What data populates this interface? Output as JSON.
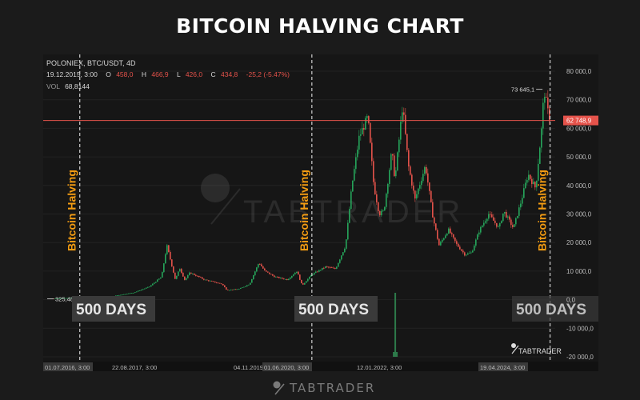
{
  "title": "BITCOIN HALVING CHART",
  "chart_info": {
    "symbol": "POLONIEX, BTC/USDT, 4D",
    "date": "19.12.2015, 3:00",
    "o_label": "O",
    "o_value": "458,0",
    "h_label": "H",
    "h_value": "466,9",
    "l_label": "L",
    "l_value": "426,0",
    "c_label": "C",
    "c_value": "434,8",
    "change": "-25,2 (-5.47%)",
    "vol_label": "VOL",
    "vol_value": "68,8144"
  },
  "watermark": "TABTRADER",
  "footer_logo": "TABTRADER",
  "small_logo": "TABTRADER",
  "colors": {
    "up": "#26a65b",
    "down": "#e5534b",
    "halving": "#f39c12",
    "price_line": "#e5534b",
    "background": "#161616"
  },
  "chart_data": {
    "type": "candlestick",
    "title": "BITCOIN HALVING CHART",
    "ylim": [
      -20000,
      80000
    ],
    "y_ticks": [
      80000,
      70000,
      60000,
      50000,
      40000,
      30000,
      20000,
      10000,
      0,
      -10000,
      -20000
    ],
    "y_tick_labels": [
      "80 000,0",
      "70 000,0",
      "60 000,0",
      "50 000,0",
      "40 000,0",
      "30 000,0",
      "20 000,0",
      "10 000,0",
      "0,0",
      "-10 000,0",
      "-20 000,0"
    ],
    "x_tick_labels": [
      "01.07.2016, 3:00",
      "22.08.2017, 3:00",
      "04.11.2019",
      "01.06.2020, 3:00",
      "12.01.2022, 3:00",
      "19.04.2024, 3:00"
    ],
    "y_axis_extra": "auto",
    "halvings": [
      {
        "label": "Bitcoin Halving",
        "date": "2016-07-09"
      },
      {
        "label": "Bitcoin Halving",
        "date": "2020-05-11"
      },
      {
        "label": "Bitcoin Halving",
        "date": "2024-04-19"
      }
    ],
    "day_labels": [
      "500 DAYS",
      "500 DAYS",
      "500 DAYS"
    ],
    "current_price": 62748.9,
    "current_price_label": "62 748,9",
    "max_price": 73645.1,
    "max_price_label": "73 645,1",
    "min_price": 325.48,
    "min_price_label": "325,480",
    "price_path": [
      {
        "date": "2016-02-01",
        "close": 400
      },
      {
        "date": "2016-06-15",
        "close": 700
      },
      {
        "date": "2017-01-01",
        "close": 1000
      },
      {
        "date": "2017-06-01",
        "close": 2500
      },
      {
        "date": "2017-09-01",
        "close": 4500
      },
      {
        "date": "2017-11-15",
        "close": 8000
      },
      {
        "date": "2017-12-17",
        "close": 19000
      },
      {
        "date": "2018-02-06",
        "close": 7000
      },
      {
        "date": "2018-03-05",
        "close": 11000
      },
      {
        "date": "2018-04-05",
        "close": 6800
      },
      {
        "date": "2018-05-05",
        "close": 9500
      },
      {
        "date": "2018-08-01",
        "close": 7000
      },
      {
        "date": "2018-11-15",
        "close": 5500
      },
      {
        "date": "2018-12-15",
        "close": 3300
      },
      {
        "date": "2019-03-01",
        "close": 3800
      },
      {
        "date": "2019-05-01",
        "close": 5500
      },
      {
        "date": "2019-06-26",
        "close": 13000
      },
      {
        "date": "2019-08-01",
        "close": 10000
      },
      {
        "date": "2019-10-01",
        "close": 8000
      },
      {
        "date": "2019-12-15",
        "close": 7000
      },
      {
        "date": "2020-02-10",
        "close": 10000
      },
      {
        "date": "2020-03-13",
        "close": 5000
      },
      {
        "date": "2020-05-11",
        "close": 8800
      },
      {
        "date": "2020-08-01",
        "close": 11500
      },
      {
        "date": "2020-10-01",
        "close": 10800
      },
      {
        "date": "2020-12-01",
        "close": 19000
      },
      {
        "date": "2021-01-08",
        "close": 40000
      },
      {
        "date": "2021-02-21",
        "close": 57000
      },
      {
        "date": "2021-04-14",
        "close": 64000
      },
      {
        "date": "2021-05-20",
        "close": 40000
      },
      {
        "date": "2021-06-22",
        "close": 30000
      },
      {
        "date": "2021-07-20",
        "close": 31000
      },
      {
        "date": "2021-09-06",
        "close": 52000
      },
      {
        "date": "2021-09-25",
        "close": 42000
      },
      {
        "date": "2021-11-10",
        "close": 68000
      },
      {
        "date": "2021-12-15",
        "close": 47000
      },
      {
        "date": "2022-01-24",
        "close": 35000
      },
      {
        "date": "2022-03-28",
        "close": 47000
      },
      {
        "date": "2022-05-12",
        "close": 29000
      },
      {
        "date": "2022-06-18",
        "close": 19000
      },
      {
        "date": "2022-08-14",
        "close": 24500
      },
      {
        "date": "2022-10-01",
        "close": 19500
      },
      {
        "date": "2022-11-21",
        "close": 15800
      },
      {
        "date": "2023-01-01",
        "close": 16500
      },
      {
        "date": "2023-02-15",
        "close": 24000
      },
      {
        "date": "2023-04-14",
        "close": 30000
      },
      {
        "date": "2023-06-15",
        "close": 25000
      },
      {
        "date": "2023-07-14",
        "close": 31000
      },
      {
        "date": "2023-09-11",
        "close": 25000
      },
      {
        "date": "2023-10-25",
        "close": 34000
      },
      {
        "date": "2023-12-08",
        "close": 44000
      },
      {
        "date": "2024-01-23",
        "close": 39000
      },
      {
        "date": "2024-02-28",
        "close": 60000
      },
      {
        "date": "2024-03-14",
        "close": 73645
      },
      {
        "date": "2024-04-05",
        "close": 66000
      },
      {
        "date": "2024-04-19",
        "close": 62749
      }
    ]
  }
}
